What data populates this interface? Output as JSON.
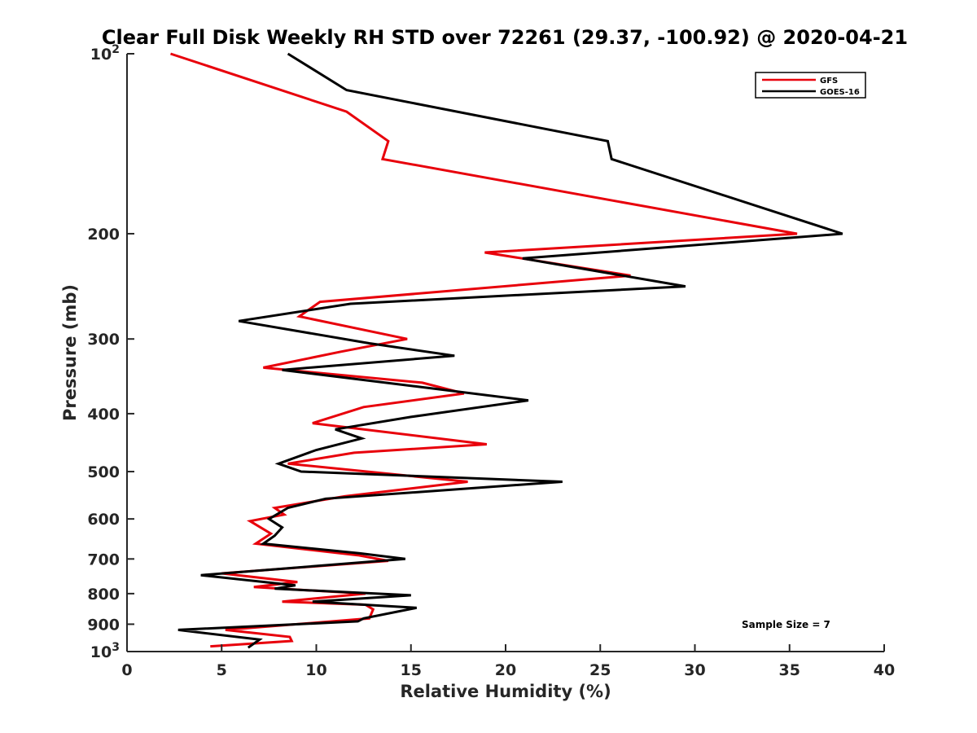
{
  "chart_data": {
    "type": "line",
    "title": "Clear Full Disk Weekly RH STD over 72261 (29.37, -100.92) @ 2020-04-21",
    "xlabel": "Relative Humidity (%)",
    "ylabel": "Pressure (mb)",
    "xlim": [
      0,
      40
    ],
    "ylim": [
      100,
      1000
    ],
    "y_scale": "log",
    "y_reversed": true,
    "x_ticks": [
      0,
      5,
      10,
      15,
      20,
      25,
      30,
      35,
      40
    ],
    "y_ticks": [
      {
        "value": 100,
        "label": "10",
        "sup": "2"
      },
      {
        "value": 200,
        "label": "200",
        "sup": ""
      },
      {
        "value": 300,
        "label": "300",
        "sup": ""
      },
      {
        "value": 400,
        "label": "400",
        "sup": ""
      },
      {
        "value": 500,
        "label": "500",
        "sup": ""
      },
      {
        "value": 600,
        "label": "600",
        "sup": ""
      },
      {
        "value": 700,
        "label": "700",
        "sup": ""
      },
      {
        "value": 800,
        "label": "800",
        "sup": ""
      },
      {
        "value": 900,
        "label": "900",
        "sup": ""
      },
      {
        "value": 1000,
        "label": "10",
        "sup": "3"
      }
    ],
    "legend_position": "top-right",
    "grid": false,
    "annotation": "Sample Size = 7",
    "series": [
      {
        "name": "GFS",
        "color": "#e8000b",
        "points": [
          [
            2.3,
            100
          ],
          [
            11.6,
            125
          ],
          [
            13.8,
            140
          ],
          [
            13.5,
            150
          ],
          [
            35.4,
            200
          ],
          [
            18.9,
            215
          ],
          [
            26.6,
            235
          ],
          [
            10.2,
            260
          ],
          [
            9.1,
            275
          ],
          [
            14.8,
            300
          ],
          [
            11.3,
            315
          ],
          [
            7.2,
            335
          ],
          [
            15.6,
            355
          ],
          [
            17.8,
            370
          ],
          [
            12.5,
            390
          ],
          [
            9.8,
            415
          ],
          [
            19.0,
            450
          ],
          [
            12.0,
            465
          ],
          [
            8.5,
            485
          ],
          [
            18.0,
            520
          ],
          [
            11.5,
            550
          ],
          [
            7.8,
            575
          ],
          [
            8.3,
            590
          ],
          [
            6.5,
            605
          ],
          [
            7.6,
            635
          ],
          [
            6.8,
            660
          ],
          [
            12.2,
            690
          ],
          [
            13.8,
            705
          ],
          [
            5.0,
            740
          ],
          [
            9.0,
            765
          ],
          [
            6.7,
            780
          ],
          [
            12.6,
            800
          ],
          [
            8.2,
            825
          ],
          [
            12.6,
            835
          ],
          [
            13.0,
            850
          ],
          [
            12.8,
            880
          ],
          [
            5.2,
            920
          ],
          [
            8.6,
            945
          ],
          [
            8.7,
            960
          ],
          [
            4.4,
            980
          ]
        ]
      },
      {
        "name": "GOES-16",
        "color": "#000000",
        "points": [
          [
            8.5,
            100
          ],
          [
            11.6,
            115
          ],
          [
            25.4,
            140
          ],
          [
            25.6,
            150
          ],
          [
            37.8,
            200
          ],
          [
            20.9,
            220
          ],
          [
            29.5,
            245
          ],
          [
            11.8,
            262
          ],
          [
            5.9,
            280
          ],
          [
            12.8,
            305
          ],
          [
            17.3,
            320
          ],
          [
            8.2,
            338
          ],
          [
            15.2,
            360
          ],
          [
            21.2,
            380
          ],
          [
            15.0,
            405
          ],
          [
            11.0,
            425
          ],
          [
            12.4,
            440
          ],
          [
            10.0,
            460
          ],
          [
            8.0,
            485
          ],
          [
            9.2,
            500
          ],
          [
            23.0,
            520
          ],
          [
            10.5,
            555
          ],
          [
            8.5,
            575
          ],
          [
            7.5,
            600
          ],
          [
            8.2,
            620
          ],
          [
            7.8,
            640
          ],
          [
            7.2,
            660
          ],
          [
            12.3,
            685
          ],
          [
            14.7,
            700
          ],
          [
            3.9,
            745
          ],
          [
            8.9,
            775
          ],
          [
            7.8,
            785
          ],
          [
            15.0,
            805
          ],
          [
            9.8,
            825
          ],
          [
            15.3,
            845
          ],
          [
            12.5,
            880
          ],
          [
            12.2,
            890
          ],
          [
            2.7,
            920
          ],
          [
            7.0,
            955
          ],
          [
            6.4,
            985
          ]
        ]
      }
    ]
  }
}
